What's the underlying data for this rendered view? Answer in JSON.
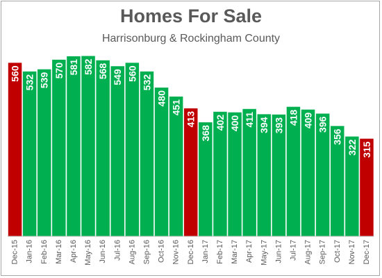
{
  "chart_data": {
    "type": "bar",
    "title": "Homes For Sale",
    "subtitle": "Harrisonburg & Rockingham County",
    "xlabel": "",
    "ylabel": "",
    "ylim": [
      0,
      600
    ],
    "grid": false,
    "legend": "none",
    "categories": [
      "Dec-15",
      "Jan-16",
      "Feb-16",
      "Mar-16",
      "Apr-16",
      "May-16",
      "Jun-16",
      "Jul-16",
      "Aug-16",
      "Sep-16",
      "Oct-16",
      "Nov-16",
      "Dec-16",
      "Jan-17",
      "Feb-17",
      "Mar-17",
      "Apr-17",
      "May-17",
      "Jun-17",
      "Jul-17",
      "Aug-17",
      "Sep-17",
      "Oct-17",
      "Nov-17",
      "Dec-17"
    ],
    "values": [
      560,
      532,
      539,
      570,
      581,
      582,
      568,
      549,
      560,
      532,
      480,
      451,
      413,
      368,
      402,
      400,
      411,
      394,
      393,
      418,
      409,
      396,
      356,
      322,
      315
    ],
    "highlight_categories": [
      "Dec-15",
      "Dec-16",
      "Dec-17"
    ],
    "colors": {
      "bar": "#00b050",
      "highlight": "#c00000",
      "text": "#595959",
      "label": "#ffffff"
    }
  }
}
